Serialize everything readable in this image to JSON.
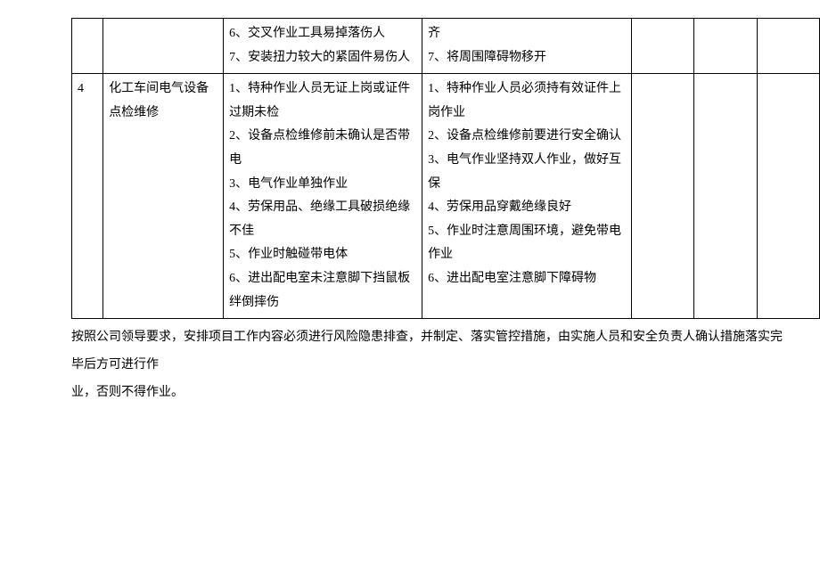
{
  "table": {
    "rows": [
      {
        "num": "",
        "task": "",
        "risks": [
          "6、交叉作业工具易掉落伤人",
          "7、安装扭力较大的紧固件易伤人"
        ],
        "measures": [
          "齐",
          "7、将周围障碍物移开"
        ]
      },
      {
        "num": "4",
        "task": "化工车间电气设备点检维修",
        "risks": [
          "1、特种作业人员无证上岗或证件过期未检",
          "2、设备点检维修前未确认是否带电",
          "3、电气作业单独作业",
          "4、劳保用品、绝缘工具破损绝缘不佳",
          "5、作业时触碰带电体",
          "6、进出配电室未注意脚下挡鼠板绊倒摔伤"
        ],
        "measures": [
          "1、特种作业人员必须持有效证件上岗作业",
          "2、设备点检维修前要进行安全确认",
          "3、电气作业坚持双人作业，做好互保",
          "4、劳保用品穿戴绝缘良好",
          "5、作业时注意周围环境，避免带电作业",
          "6、进出配电室注意脚下障碍物"
        ]
      }
    ]
  },
  "footer": {
    "line1": "按照公司领导要求，安排项目工作内容必须进行风险隐患排查，并制定、落实管控措施，由实施人员和安全负责人确认措施落实完毕后方可进行作",
    "line2": "业，否则不得作业。"
  }
}
